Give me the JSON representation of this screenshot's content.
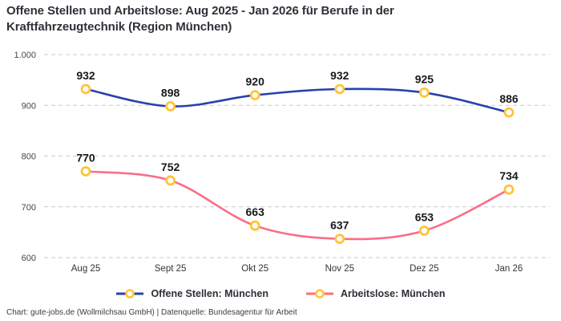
{
  "title": "Offene Stellen und Arbeitslose: Aug 2025 - Jan 2026 für Berufe in der Kraftfahrzeugtechnik (Region München)",
  "footer": "Chart: gute-jobs.de (Wollmilchsau GmbH) | Datenquelle: Bundesagentur für Arbeit",
  "colors": {
    "title_text": "#2e3138",
    "grid": "#c9c9c9",
    "axis_text": "#474747",
    "value_label": "#17191d",
    "marker_ring": "#ffc438",
    "marker_fill": "#ffffff"
  },
  "chart_data": {
    "type": "line",
    "categories": [
      "Aug 25",
      "Sept 25",
      "Okt 25",
      "Nov 25",
      "Dez 25",
      "Jan 26"
    ],
    "series": [
      {
        "name": "Offene Stellen: München",
        "color": "#2840ae",
        "values": [
          932,
          898,
          920,
          932,
          925,
          886
        ]
      },
      {
        "name": "Arbeitslose: München",
        "color": "#fa6e85",
        "values": [
          770,
          752,
          663,
          637,
          653,
          734
        ]
      }
    ],
    "ylim": [
      600,
      1000
    ],
    "yticks": [
      1000,
      900,
      800,
      700,
      600
    ],
    "ytick_labels": [
      "1.000",
      "900",
      "800",
      "700",
      "600"
    ],
    "grid": true,
    "legend_position": "bottom",
    "marker_color": "#ffc438"
  }
}
